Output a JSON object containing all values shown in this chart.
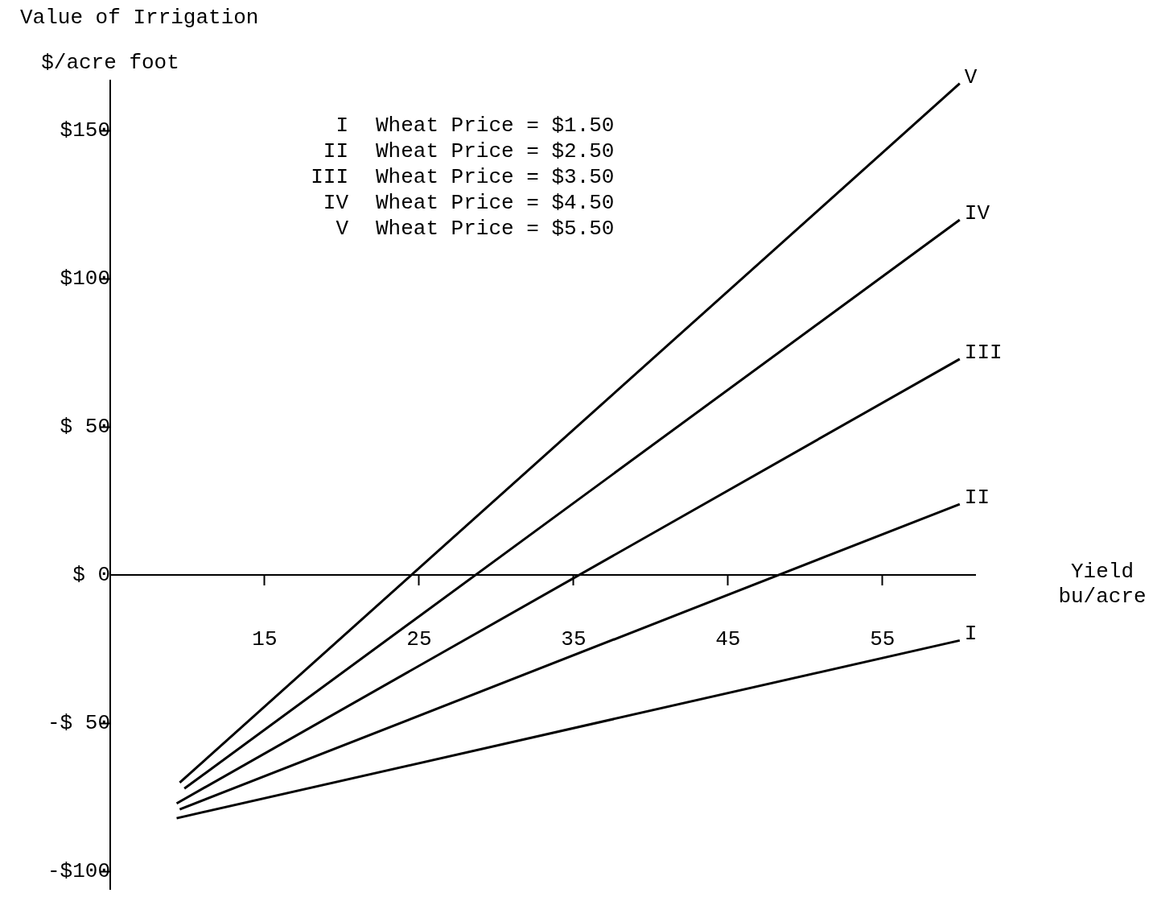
{
  "chart_data": {
    "type": "line",
    "title": "Value of Irrigation",
    "xlabel": "Yield bu/acre",
    "ylabel": "$/acre foot",
    "xlim": [
      5,
      61
    ],
    "ylim": [
      -106,
      167
    ],
    "xticks": [
      15,
      25,
      35,
      45,
      55
    ],
    "yticks": [
      {
        "value": -100,
        "label": "-$100"
      },
      {
        "value": -50,
        "label": "-$ 50"
      },
      {
        "value": 0,
        "label": "$ 0"
      },
      {
        "value": 50,
        "label": "$ 50"
      },
      {
        "value": 100,
        "label": "$100"
      },
      {
        "value": 150,
        "label": "$150"
      }
    ],
    "series": [
      {
        "name": "I",
        "color": "#000000",
        "x": [
          9.3,
          60
        ],
        "values": [
          -82,
          -22
        ]
      },
      {
        "name": "II",
        "color": "#000000",
        "x": [
          9.5,
          60
        ],
        "values": [
          -79,
          24
        ]
      },
      {
        "name": "III",
        "color": "#000000",
        "x": [
          9.3,
          60
        ],
        "values": [
          -77,
          73
        ]
      },
      {
        "name": "IV",
        "color": "#000000",
        "x": [
          9.8,
          60
        ],
        "values": [
          -72,
          120
        ]
      },
      {
        "name": "V",
        "color": "#000000",
        "x": [
          9.5,
          60
        ],
        "values": [
          -70,
          166
        ]
      }
    ],
    "annotations": [
      "I Wheat Price = $1.50",
      "II Wheat Price = $2.50",
      "III Wheat Price = $3.50",
      "IV Wheat Price = $4.50",
      "V Wheat Price = $5.50"
    ]
  }
}
